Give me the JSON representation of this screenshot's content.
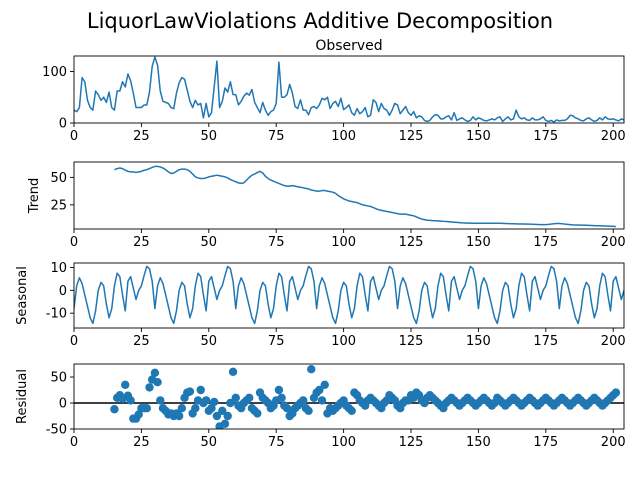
{
  "figure": {
    "title": "LiquorLawViolations Additive Decomposition",
    "line_color": "#1f77b4",
    "point_color": "#1f77b4",
    "zero_line_color": "#000000"
  },
  "chart_data": [
    {
      "type": "line",
      "panel": "observed",
      "title": "Observed",
      "xlabel": "",
      "ylabel": "",
      "xlim": [
        0,
        204
      ],
      "ylim": [
        0,
        130
      ],
      "xticks": [
        0,
        25,
        50,
        75,
        100,
        125,
        150,
        175,
        200
      ],
      "yticks": [
        0,
        100
      ],
      "grid": false,
      "x_start": 0,
      "values": [
        25,
        22,
        30,
        88,
        80,
        44,
        30,
        25,
        62,
        55,
        44,
        50,
        40,
        60,
        30,
        25,
        62,
        62,
        80,
        70,
        95,
        82,
        58,
        30,
        30,
        30,
        35,
        35,
        60,
        110,
        128,
        112,
        62,
        42,
        40,
        38,
        30,
        28,
        58,
        78,
        88,
        85,
        64,
        42,
        30,
        44,
        35,
        38,
        10,
        38,
        12,
        20,
        70,
        120,
        30,
        42,
        68,
        60,
        80,
        55,
        55,
        35,
        42,
        52,
        58,
        54,
        65,
        40,
        30,
        20,
        40,
        25,
        15,
        22,
        25,
        38,
        118,
        50,
        50,
        55,
        75,
        58,
        32,
        28,
        45,
        25,
        25,
        16,
        30,
        32,
        28,
        35,
        48,
        45,
        50,
        28,
        38,
        42,
        32,
        48,
        26,
        30,
        35,
        20,
        15,
        28,
        18,
        22,
        30,
        12,
        15,
        45,
        40,
        22,
        38,
        28,
        25,
        15,
        25,
        38,
        35,
        18,
        25,
        32,
        20,
        15,
        22,
        10,
        14,
        12,
        5,
        3,
        5,
        12,
        16,
        15,
        8,
        8,
        12,
        14,
        6,
        20,
        5,
        8,
        10,
        6,
        3,
        5,
        12,
        6,
        10,
        8,
        5,
        4,
        6,
        8,
        6,
        10,
        12,
        3,
        8,
        12,
        6,
        8,
        25,
        12,
        8,
        10,
        6,
        5,
        10,
        6,
        6,
        8,
        12,
        5,
        3,
        5,
        2,
        6,
        4,
        5,
        5,
        8,
        15,
        14,
        10,
        8,
        5,
        4,
        8,
        10,
        6,
        3,
        5,
        10,
        6,
        12,
        8,
        7,
        8,
        6,
        4,
        8,
        6
      ]
    },
    {
      "type": "line",
      "panel": "trend",
      "title": "",
      "xlabel": "",
      "ylabel": "Trend",
      "xlim": [
        0,
        204
      ],
      "ylim": [
        3,
        64
      ],
      "xticks": [
        0,
        25,
        50,
        75,
        100,
        125,
        150,
        175,
        200
      ],
      "yticks": [
        25,
        50
      ],
      "grid": false,
      "x_start": 15,
      "values": [
        57,
        58,
        58.5,
        58,
        56.5,
        55.5,
        55,
        55,
        54.5,
        55,
        55.5,
        56.5,
        57,
        58,
        59,
        60,
        60,
        59.5,
        58.5,
        57,
        55,
        53.5,
        54,
        55.5,
        57,
        57.5,
        57.5,
        57,
        55.5,
        53,
        50.5,
        49.5,
        49,
        49,
        49.5,
        50.5,
        51,
        51.5,
        52,
        51.5,
        51,
        50.5,
        49.5,
        48,
        47,
        46,
        45,
        44.5,
        45,
        47.5,
        50,
        52,
        53,
        54.5,
        55.5,
        54,
        51,
        49,
        47.5,
        46.5,
        45.5,
        44.5,
        43.5,
        42.5,
        42,
        42,
        42.5,
        42,
        41.5,
        41,
        40.5,
        40,
        39.5,
        38.5,
        38,
        37.5,
        37.5,
        38,
        38,
        37.5,
        37,
        36.5,
        35.5,
        33.5,
        32,
        30.5,
        29.5,
        28.5,
        28,
        27.5,
        27,
        26,
        25,
        24.5,
        24,
        23.5,
        22.5,
        21.5,
        20.5,
        20,
        19.5,
        19,
        18.5,
        18,
        17.5,
        17,
        16.5,
        16.5,
        16.5,
        16,
        15.5,
        15,
        14,
        13,
        12,
        11.5,
        11,
        10.8,
        10.6,
        10.5,
        10.4,
        10.2,
        10,
        9.8,
        9.6,
        9.4,
        9.2,
        9,
        8.8,
        8.6,
        8.5,
        8.4,
        8.3,
        8.2,
        8.2,
        8.2,
        8.2,
        8.2,
        8.2,
        8.2,
        8.2,
        8.2,
        8.2,
        8.2,
        8.1,
        8,
        7.9,
        7.8,
        7.8,
        7.7,
        7.6,
        7.6,
        7.5,
        7.4,
        7.4,
        7.3,
        7.2,
        7.1,
        7,
        7,
        7,
        7.2,
        7.5,
        7.8,
        8,
        8,
        7.8,
        7.5,
        7.2,
        7,
        6.8,
        6.7,
        6.6,
        6.5,
        6.5,
        6.4,
        6.3,
        6.2,
        6.1,
        6,
        5.9,
        5.8,
        5.7,
        5.6,
        5.5,
        5.4,
        5.3
      ]
    },
    {
      "type": "line",
      "panel": "seasonal",
      "title": "",
      "xlabel": "",
      "ylabel": "Seasonal",
      "xlim": [
        0,
        204
      ],
      "ylim": [
        -16.5,
        12
      ],
      "xticks": [
        0,
        25,
        50,
        75,
        100,
        125,
        150,
        175,
        200
      ],
      "yticks": [
        -10,
        0,
        10
      ],
      "grid": false,
      "period": 30,
      "x_start": 0,
      "pattern": [
        -8,
        2,
        5.5,
        3,
        -2,
        -7,
        -12,
        -14.5,
        -9,
        0,
        3.5,
        2,
        -6,
        -12,
        -8,
        2,
        7.5,
        6,
        -2,
        -9,
        4,
        6,
        1,
        -4,
        0,
        2,
        6.5,
        10.5,
        9.5,
        4
      ]
    },
    {
      "type": "scatter",
      "panel": "residual",
      "title": "",
      "xlabel": "",
      "ylabel": "Residual",
      "xlim": [
        0,
        204
      ],
      "ylim": [
        -50,
        75
      ],
      "xticks": [
        0,
        25,
        50,
        75,
        100,
        125,
        150,
        175,
        200
      ],
      "yticks": [
        -50,
        0,
        50
      ],
      "grid": false,
      "zero_line": 0,
      "x_start": 15,
      "values": [
        -12,
        10,
        15,
        8,
        35,
        14,
        5,
        -30,
        -30,
        -22,
        -10,
        -10,
        -10,
        30,
        45,
        58,
        40,
        5,
        -10,
        -15,
        -22,
        -20,
        -25,
        -20,
        -25,
        -10,
        10,
        20,
        22,
        -20,
        -10,
        5,
        25,
        0,
        5,
        -15,
        -10,
        2,
        -25,
        -45,
        -15,
        -40,
        -25,
        0,
        60,
        10,
        -5,
        -10,
        0,
        5,
        10,
        -10,
        -15,
        -20,
        20,
        10,
        5,
        0,
        -10,
        -5,
        5,
        25,
        10,
        -5,
        -10,
        -25,
        -20,
        -10,
        -5,
        0,
        5,
        -10,
        -15,
        65,
        10,
        20,
        25,
        5,
        35,
        -20,
        -10,
        -15,
        -10,
        -5,
        0,
        5,
        -5,
        -10,
        -15,
        20,
        15,
        5,
        0,
        -5,
        5,
        10,
        5,
        0,
        -5,
        -10,
        0,
        5,
        15,
        10,
        5,
        -5,
        -10,
        0,
        5,
        5,
        15,
        10,
        20,
        15,
        5,
        0,
        10,
        15,
        10,
        5,
        0,
        -5,
        -10,
        0,
        5,
        10,
        5,
        0,
        -5,
        0,
        5,
        10,
        5,
        0,
        -5,
        0,
        5,
        10,
        5,
        0,
        -5,
        0,
        10,
        5,
        0,
        -5,
        0,
        5,
        10,
        5,
        0,
        -5,
        0,
        5,
        10,
        5,
        0,
        -5,
        0,
        5,
        10,
        5,
        0,
        -5,
        0,
        5,
        10,
        5,
        0,
        -5,
        0,
        5,
        10,
        5,
        0,
        -5,
        0,
        5,
        10,
        5,
        0,
        -5,
        0,
        5,
        10,
        15,
        20
      ]
    }
  ]
}
